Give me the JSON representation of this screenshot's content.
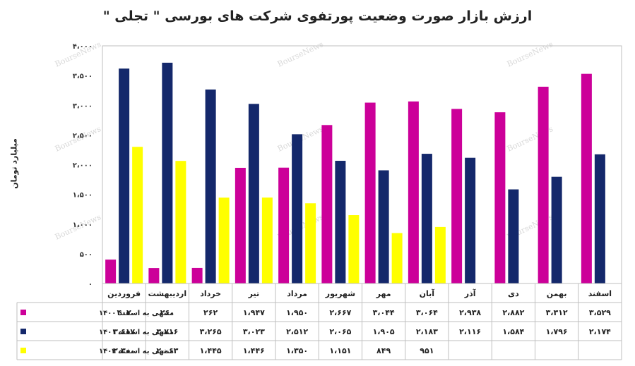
{
  "chart_data": {
    "type": "bar",
    "title": "ارزش بازار صورت وضعیت پورتفوی شرکت های بورسی \" تجلی \"",
    "ylabel": "میلیارد تومان",
    "ylim": [
      0,
      4000
    ],
    "yticks": [
      0,
      500,
      1000,
      1500,
      2000,
      2500,
      3000,
      3500,
      4000
    ],
    "ytick_labels": [
      "۰",
      "۵۰۰",
      "۱،۰۰۰",
      "۱،۵۰۰",
      "۲،۰۰۰",
      "۲،۵۰۰",
      "۳،۰۰۰",
      "۳،۵۰۰",
      "۴،۰۰۰"
    ],
    "grid": false,
    "legend_placement": "table-left",
    "categories": [
      "فروردین",
      "اردیبهشت",
      "خرداد",
      "تیر",
      "مرداد",
      "شهریور",
      "مهر",
      "آبان",
      "آذر",
      "دی",
      "بهمن",
      "اسفند"
    ],
    "series": [
      {
        "name": "منتهی به اسفند ۱۴۰۰",
        "color": "#cc0099",
        "values": [
          402,
          260,
          262,
          1947,
          1950,
          2667,
          3044,
          3064,
          2938,
          2882,
          3312,
          3529
        ],
        "labels": [
          "۴۰۲",
          "۲۶۰",
          "۲۶۲",
          "۱،۹۴۷",
          "۱،۹۵۰",
          "۲،۶۶۷",
          "۳،۰۴۴",
          "۳،۰۶۴",
          "۲،۹۳۸",
          "۲،۸۸۲",
          "۳،۳۱۲",
          "۳،۵۲۹"
        ]
      },
      {
        "name": "منتهی به اسفند ۱۴۰۱",
        "color": "#14286b",
        "values": [
          3617,
          3716,
          3265,
          3023,
          2512,
          2065,
          1905,
          2183,
          2116,
          1584,
          1796,
          2174
        ],
        "labels": [
          "۳،۶۱۷",
          "۳،۷۱۶",
          "۳،۲۶۵",
          "۳،۰۲۳",
          "۲،۵۱۲",
          "۲،۰۶۵",
          "۱،۹۰۵",
          "۲،۱۸۳",
          "۲،۱۱۶",
          "۱،۵۸۴",
          "۱،۷۹۶",
          "۲،۱۷۴"
        ]
      },
      {
        "name": "منتهی به اسفند ۱۴۰۲",
        "color": "#ffff00",
        "values": [
          2300,
          2063,
          1445,
          1446,
          1350,
          1151,
          849,
          951,
          null,
          null,
          null,
          null
        ],
        "labels": [
          "۲،۳۰۰",
          "۲،۰۶۳",
          "۱،۴۴۵",
          "۱،۴۴۶",
          "۱،۳۵۰",
          "۱،۱۵۱",
          "۸۴۹",
          "۹۵۱",
          "",
          "",
          "",
          ""
        ]
      }
    ]
  },
  "watermark": "BourseNews"
}
